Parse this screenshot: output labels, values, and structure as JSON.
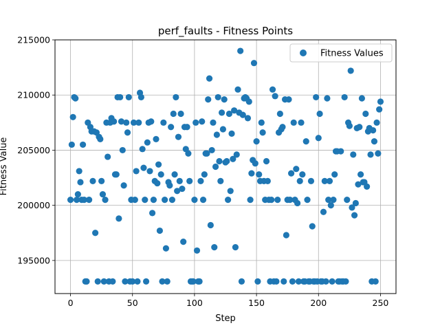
{
  "chart_data": {
    "type": "scatter",
    "title": "perf_faults - Fitness Points",
    "xlabel": "Step",
    "ylabel": "Fitness Value",
    "xlim": [
      -12.5,
      262.5
    ],
    "ylim": [
      192000,
      215000
    ],
    "xticks": [
      0,
      50,
      100,
      150,
      200,
      250
    ],
    "yticks": [
      195000,
      200000,
      205000,
      210000,
      215000
    ],
    "grid": true,
    "legend": {
      "position": "top-right",
      "entries": [
        "Fitness Values"
      ]
    },
    "marker_color": "#1f77b4",
    "series": [
      {
        "name": "Fitness Values",
        "x": [
          0,
          1,
          2,
          3,
          4,
          5,
          6,
          7,
          8,
          9,
          10,
          11,
          12,
          13,
          14,
          15,
          16,
          17,
          18,
          19,
          20,
          21,
          22,
          23,
          24,
          25,
          26,
          27,
          28,
          29,
          30,
          31,
          32,
          33,
          34,
          35,
          36,
          37,
          38,
          39,
          40,
          41,
          42,
          43,
          44,
          45,
          46,
          47,
          48,
          49,
          50,
          51,
          52,
          53,
          54,
          55,
          56,
          57,
          58,
          59,
          60,
          61,
          62,
          63,
          64,
          65,
          66,
          67,
          68,
          69,
          70,
          71,
          72,
          73,
          74,
          75,
          76,
          77,
          78,
          79,
          80,
          81,
          82,
          83,
          84,
          85,
          86,
          87,
          88,
          89,
          90,
          91,
          92,
          93,
          94,
          95,
          96,
          97,
          98,
          99,
          100,
          101,
          102,
          103,
          104,
          105,
          106,
          107,
          108,
          109,
          110,
          111,
          112,
          113,
          114,
          115,
          116,
          117,
          118,
          119,
          120,
          121,
          122,
          123,
          124,
          125,
          126,
          127,
          128,
          129,
          130,
          131,
          132,
          133,
          134,
          135,
          136,
          137,
          138,
          139,
          140,
          141,
          142,
          143,
          144,
          145,
          146,
          147,
          148,
          149,
          150,
          151,
          152,
          153,
          154,
          155,
          156,
          157,
          158,
          159,
          160,
          161,
          162,
          163,
          164,
          165,
          166,
          167,
          168,
          169,
          170,
          171,
          172,
          173,
          174,
          175,
          176,
          177,
          178,
          179,
          180,
          181,
          182,
          183,
          184,
          185,
          186,
          187,
          188,
          189,
          190,
          191,
          192,
          193,
          194,
          195,
          196,
          197,
          198,
          199,
          200,
          201,
          202,
          203,
          204,
          205,
          206,
          207,
          208,
          209,
          210,
          211,
          212,
          213,
          214,
          215,
          216,
          217,
          218,
          219,
          220,
          221,
          222,
          223,
          224,
          225,
          226,
          227,
          228,
          229,
          230,
          231,
          232,
          233,
          234,
          235,
          236,
          237,
          238,
          239,
          240,
          241,
          242,
          243,
          244,
          245,
          246,
          247,
          248,
          249,
          250
        ],
        "y": [
          200500,
          205500,
          208000,
          209800,
          209700,
          200500,
          201000,
          203100,
          202100,
          200500,
          205500,
          200500,
          193100,
          193100,
          207500,
          200500,
          207100,
          206700,
          202200,
          206700,
          197500,
          206600,
          193100,
          206200,
          206000,
          202200,
          201000,
          193100,
          200500,
          207500,
          204400,
          193100,
          207500,
          207900,
          193100,
          207600,
          202800,
          202800,
          209800,
          198800,
          209800,
          207600,
          205000,
          201800,
          193100,
          207500,
          206600,
          209800,
          193100,
          200500,
          193100,
          207500,
          200500,
          203100,
          193100,
          207500,
          210200,
          209800,
          205100,
          203400,
          200500,
          193100,
          205700,
          207500,
          203100,
          207600,
          199300,
          200500,
          202200,
          206000,
          202000,
          203700,
          197700,
          202800,
          193100,
          207500,
          200500,
          196100,
          193100,
          202100,
          201800,
          207100,
          200500,
          208300,
          202800,
          209800,
          201300,
          206200,
          202200,
          208300,
          201500,
          196700,
          207100,
          205100,
          207100,
          204700,
          202200,
          193100,
          193100,
          193100,
          200500,
          207500,
          195900,
          193100,
          193100,
          202200,
          207600,
          200500,
          202800,
          204700,
          204700,
          209600,
          211500,
          198200,
          205000,
          207500,
          196200,
          203500,
          206400,
          209800,
          204000,
          202200,
          208400,
          206900,
          209600,
          203900,
          204000,
          200500,
          208300,
          201300,
          206500,
          204200,
          208600,
          196200,
          204600,
          210500,
          208400,
          214000,
          193100,
          208200,
          209700,
          209800,
          209700,
          207900,
          209400,
          200500,
          202900,
          204100,
          212900,
          203800,
          205800,
          193100,
          202800,
          202200,
          207500,
          206600,
          202200,
          200500,
          204000,
          202200,
          200500,
          193100,
          200500,
          210500,
          193100,
          209900,
          193100,
          200500,
          206600,
          208300,
          206900,
          207100,
          193100,
          209600,
          197300,
          200500,
          209600,
          200500,
          202900,
          193100,
          207500,
          200500,
          203300,
          200200,
          193100,
          202200,
          207500,
          202800,
          193100,
          193100,
          205800,
          200500,
          193100,
          193100,
          202200,
          198100,
          193100,
          193100,
          209800,
          193100,
          206100,
          208300,
          193100,
          193100,
          199400,
          202200,
          193100,
          209700,
          200500,
          202200,
          200000,
          193100,
          200500,
          202800,
          204900,
          204900,
          193100,
          193100,
          204900,
          193100,
          193100,
          209800,
          193100,
          200500,
          207500,
          207200,
          212200,
          199800,
          204600,
          199100,
          200200,
          207000,
          201900,
          207100,
          202800,
          209700,
          202100,
          202100,
          208300,
          201700,
          206700,
          207000,
          204600,
          193100,
          206800,
          205800,
          193100,
          207500,
          204700,
          208700,
          209400
        ]
      }
    ]
  }
}
